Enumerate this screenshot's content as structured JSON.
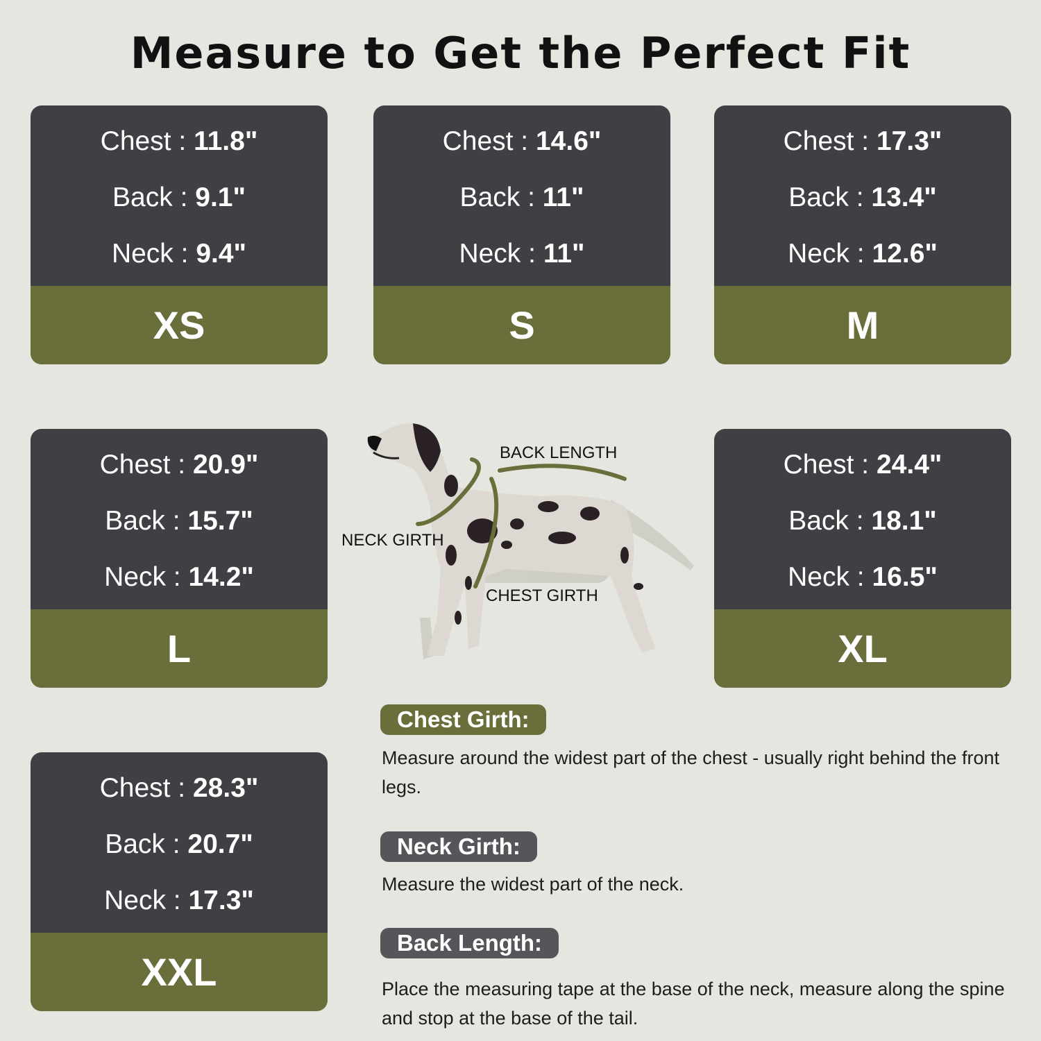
{
  "title": "Measure to Get the Perfect Fit",
  "colors": {
    "background": "#e6e6e0",
    "card": "#3f4044",
    "accent": "#6a6e3a",
    "label_gray": "#55565a"
  },
  "sizes": [
    {
      "size": "XS",
      "chest": "11.8\"",
      "back": "9.1\"",
      "neck": "9.4\""
    },
    {
      "size": "S",
      "chest": "14.6\"",
      "back": "11\"",
      "neck": "11\""
    },
    {
      "size": "M",
      "chest": "17.3\"",
      "back": "13.4\"",
      "neck": "12.6\""
    },
    {
      "size": "L",
      "chest": "20.9\"",
      "back": "15.7\"",
      "neck": "14.2\""
    },
    {
      "size": "XL",
      "chest": "24.4\"",
      "back": "18.1\"",
      "neck": "16.5\""
    },
    {
      "size": "XXL",
      "chest": "28.3\"",
      "back": "20.7\"",
      "neck": "17.3\""
    }
  ],
  "labels": {
    "chest": "Chest : ",
    "back": "Back : ",
    "neck": "Neck : "
  },
  "diagram": {
    "back_length": "BACK LENGTH",
    "neck_girth": "NECK GIRTH",
    "chest_girth": "CHEST GIRTH"
  },
  "instructions": [
    {
      "heading": "Chest Girth:",
      "text": "Measure around the widest part of the chest - usually right behind the front legs."
    },
    {
      "heading": "Neck Girth:",
      "text": "Measure the widest part of the neck."
    },
    {
      "heading": "Back Length:",
      "text": "Place the measuring tape at the base of the neck, measure along the spine and stop at the base of the tail."
    }
  ]
}
